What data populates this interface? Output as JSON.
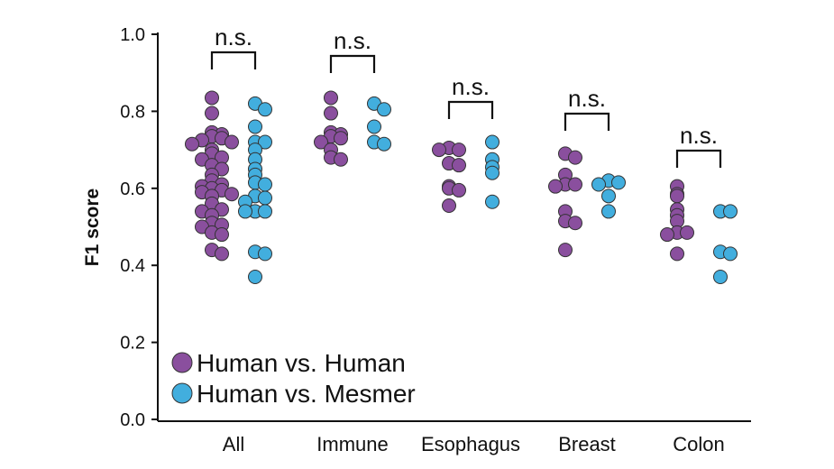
{
  "chart_data": {
    "type": "scatter",
    "title": "",
    "xlabel": "",
    "ylabel": "F1 score",
    "ylim": [
      0.0,
      1.0
    ],
    "yticks": [
      "0.0",
      "0.2",
      "0.4",
      "0.6",
      "0.8",
      "1.0"
    ],
    "grid": false,
    "legend_position": "bottom-left",
    "categories": [
      "All",
      "Immune",
      "Esophagus",
      "Breast",
      "Colon"
    ],
    "series": [
      {
        "name": "Human vs. Human",
        "color": "#8a4f9e",
        "values": [
          [
            0.835,
            0.795,
            0.745,
            0.74,
            0.735,
            0.73,
            0.725,
            0.72,
            0.715,
            0.7,
            0.69,
            0.68,
            0.675,
            0.66,
            0.65,
            0.635,
            0.62,
            0.61,
            0.605,
            0.6,
            0.595,
            0.59,
            0.585,
            0.58,
            0.56,
            0.545,
            0.54,
            0.53,
            0.51,
            0.505,
            0.5,
            0.485,
            0.48,
            0.44,
            0.43
          ],
          [
            0.835,
            0.795,
            0.745,
            0.74,
            0.735,
            0.73,
            0.72,
            0.7,
            0.68,
            0.675
          ],
          [
            0.705,
            0.7,
            0.7,
            0.665,
            0.66,
            0.605,
            0.6,
            0.595,
            0.555
          ],
          [
            0.69,
            0.68,
            0.635,
            0.61,
            0.61,
            0.605,
            0.54,
            0.515,
            0.51,
            0.44
          ],
          [
            0.605,
            0.585,
            0.58,
            0.545,
            0.53,
            0.515,
            0.485,
            0.485,
            0.48,
            0.43
          ]
        ]
      },
      {
        "name": "Human vs. Mesmer",
        "color": "#42aede",
        "values": [
          [
            0.82,
            0.805,
            0.76,
            0.72,
            0.72,
            0.7,
            0.675,
            0.65,
            0.635,
            0.615,
            0.61,
            0.58,
            0.575,
            0.565,
            0.54,
            0.54,
            0.54,
            0.435,
            0.43,
            0.37
          ],
          [
            0.82,
            0.805,
            0.76,
            0.72,
            0.715
          ],
          [
            0.72,
            0.675,
            0.655,
            0.64,
            0.565
          ],
          [
            0.62,
            0.615,
            0.61,
            0.58,
            0.54
          ],
          [
            0.54,
            0.54,
            0.435,
            0.43,
            0.37
          ]
        ]
      }
    ],
    "annotations": [
      {
        "category": "All",
        "text": "n.s."
      },
      {
        "category": "Immune",
        "text": "n.s."
      },
      {
        "category": "Esophagus",
        "text": "n.s."
      },
      {
        "category": "Breast",
        "text": "n.s."
      },
      {
        "category": "Colon",
        "text": "n.s."
      }
    ]
  }
}
